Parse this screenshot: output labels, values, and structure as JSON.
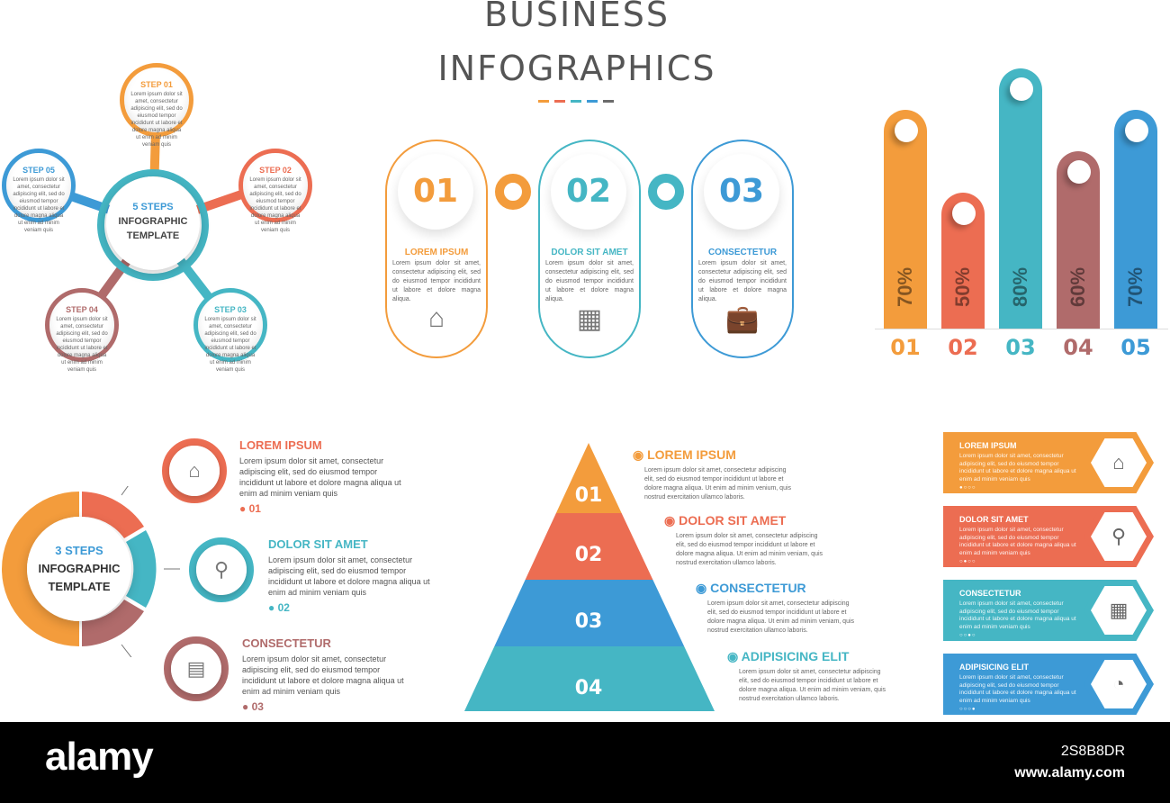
{
  "header": {
    "line1": "BUSINESS",
    "line2": "INFOGRAPHICS",
    "dash_colors": [
      "#f39c3c",
      "#ec6d52",
      "#45b6c4",
      "#3d9ad6",
      "#6b6b6b"
    ]
  },
  "colors": {
    "orange": "#f39c3c",
    "coral": "#ec6d52",
    "teal": "#45b6c4",
    "mauve": "#b06b6b",
    "blue": "#3d9ad6"
  },
  "five_steps": {
    "center": {
      "line1": "5 STEPS",
      "line2": "INFOGRAPHIC",
      "line3": "TEMPLATE"
    },
    "steps": [
      {
        "label": "STEP 01",
        "text": "Lorem ipsum dolor sit amet, consectetur adipiscing elit, sed do eiusmod tempor incididunt ut labore et dolore magna aliqua ut enim ad minim veniam quis",
        "color": "#f39c3c"
      },
      {
        "label": "STEP 02",
        "text": "Lorem ipsum dolor sit amet, consectetur adipiscing elit, sed do eiusmod tempor incididunt ut labore et dolore magna aliqua ut enim ad minim veniam quis",
        "color": "#ec6d52"
      },
      {
        "label": "STEP 03",
        "text": "Lorem ipsum dolor sit amet, consectetur adipiscing elit, sed do eiusmod tempor incididunt ut labore et dolore magna aliqua ut enim ad minim veniam quis",
        "color": "#45b6c4"
      },
      {
        "label": "STEP 04",
        "text": "Lorem ipsum dolor sit amet, consectetur adipiscing elit, sed do eiusmod tempor incididunt ut labore et dolore magna aliqua ut enim ad minim veniam quis",
        "color": "#b06b6b"
      },
      {
        "label": "STEP 05",
        "text": "Lorem ipsum dolor sit amet, consectetur adipiscing elit, sed do eiusmod tempor incididunt ut labore et dolore magna aliqua ut enim ad minim veniam quis",
        "color": "#3d9ad6"
      }
    ]
  },
  "timeline": {
    "items": [
      {
        "number": "01",
        "heading": "LOREM IPSUM",
        "text": "Lorem ipsum dolor sit amet, consectetur adipiscing elit, sed do eiusmod tempor incididunt ut labore et dolore magna aliqua.",
        "icon": "house-icon",
        "color": "#f39c3c"
      },
      {
        "number": "02",
        "heading": "DOLOR SIT AMET",
        "text": "Lorem ipsum dolor sit amet, consectetur adipiscing elit, sed do eiusmod tempor incididunt ut labore et dolore magna aliqua.",
        "icon": "calendar-icon",
        "color": "#45b6c4"
      },
      {
        "number": "03",
        "heading": "CONSECTETUR",
        "text": "Lorem ipsum dolor sit amet, consectetur adipiscing elit, sed do eiusmod tempor incididunt ut labore et dolore magna aliqua.",
        "icon": "briefcase-icon",
        "color": "#3d9ad6"
      }
    ]
  },
  "chart_data": {
    "type": "bar",
    "categories": [
      "01",
      "02",
      "03",
      "04",
      "05"
    ],
    "values": [
      70,
      50,
      80,
      60,
      70
    ],
    "value_labels": [
      "70%",
      "50%",
      "80%",
      "60%",
      "70%"
    ],
    "colors": [
      "#f39c3c",
      "#ec6d52",
      "#45b6c4",
      "#b06b6b",
      "#3d9ad6"
    ],
    "grid": false
  },
  "three_steps": {
    "center": {
      "line1": "3 STEPS",
      "line2": "INFOGRAPHIC",
      "line3": "TEMPLATE"
    },
    "items": [
      {
        "heading": "LOREM IPSUM",
        "text": "Lorem ipsum dolor sit amet, consectetur adipiscing elit, sed do eiusmod tempor incididunt ut labore et dolore magna aliqua ut enim ad minim veniam quis",
        "number": "01",
        "icon": "house-icon",
        "color": "#ec6d52"
      },
      {
        "heading": "DOLOR SIT AMET",
        "text": "Lorem ipsum dolor sit amet, consectetur adipiscing elit, sed do eiusmod tempor incididunt ut labore et dolore magna aliqua ut enim ad minim veniam quis",
        "number": "02",
        "icon": "magnifier-icon",
        "color": "#45b6c4"
      },
      {
        "heading": "CONSECTETUR",
        "text": "Lorem ipsum dolor sit amet, consectetur adipiscing elit, sed do eiusmod tempor incididunt ut labore et dolore magna aliqua ut enim ad minim veniam quis",
        "number": "03",
        "icon": "calculator-icon",
        "color": "#b06b6b"
      }
    ]
  },
  "pyramid": {
    "levels": [
      {
        "number": "01",
        "heading": "LOREM IPSUM",
        "text": "Lorem ipsum dolor sit amet, consectetur adipiscing elit, sed do eiusmod tempor incididunt ut labore et dolore magna aliqua. Ut enim ad minim venium, quis nostrud exercitation ullamco laboris.",
        "color": "#f39c3c"
      },
      {
        "number": "02",
        "heading": "DOLOR SIT AMET",
        "text": "Lorem ipsum dolor sit amet, consectetur adipiscing elit, sed do eiusmod tempor incididunt ut labore et dolore magna aliqua. Ut enim ad minim veniam, quis nostrud exercitation ullamco laboris.",
        "color": "#ec6d52"
      },
      {
        "number": "03",
        "heading": "CONSECTETUR",
        "text": "Lorem ipsum dolor sit amet, consectetur adipiscing elit, sed do eiusmod tempor incididunt ut labore et dolore magna aliqua. Ut enim ad minim veniam, quis nostrud exercitation ullamco laboris.",
        "color": "#3d9ad6"
      },
      {
        "number": "04",
        "heading": "ADIPISICING ELIT",
        "text": "Lorem ipsum dolor sit amet, consectetur adipiscing elit, sed do eiusmod tempor incididunt ut labore et dolore magna aliqua. Ut enim ad minim veniam, quis nostrud exercitation ullamco laboris.",
        "color": "#45b6c4"
      }
    ]
  },
  "cards": {
    "items": [
      {
        "heading": "LOREM IPSUM",
        "text": "Lorem ipsum dolor sit amet, consectetur adipiscing elit, sed do eiusmod tempor incididunt ut labore et dolore magna aliqua ut enim ad minim veniam quis",
        "icon": "house-icon",
        "active_dot": 1,
        "color": "#f39c3c"
      },
      {
        "heading": "DOLOR SIT AMET",
        "text": "Lorem ipsum dolor sit amet, consectetur adipiscing elit, sed do eiusmod tempor incididunt ut labore et dolore magna aliqua ut enim ad minim veniam quis",
        "icon": "magnifier-icon",
        "active_dot": 2,
        "color": "#ec6d52"
      },
      {
        "heading": "CONSECTETUR",
        "text": "Lorem ipsum dolor sit amet, consectetur adipiscing elit, sed do eiusmod tempor incididunt ut labore et dolore magna aliqua ut enim ad minim veniam quis",
        "icon": "calendar-icon",
        "active_dot": 3,
        "color": "#45b6c4"
      },
      {
        "heading": "ADIPISICING ELIT",
        "text": "Lorem ipsum dolor sit amet, consectetur adipiscing elit, sed do eiusmod tempor incididunt ut labore et dolore magna aliqua ut enim ad minim veniam quis",
        "icon": "pie-chart-icon",
        "active_dot": 4,
        "color": "#3d9ad6"
      }
    ]
  },
  "footer": {
    "logo": "alamy",
    "image_id": "2S8B8DR",
    "url": "www.alamy.com"
  }
}
